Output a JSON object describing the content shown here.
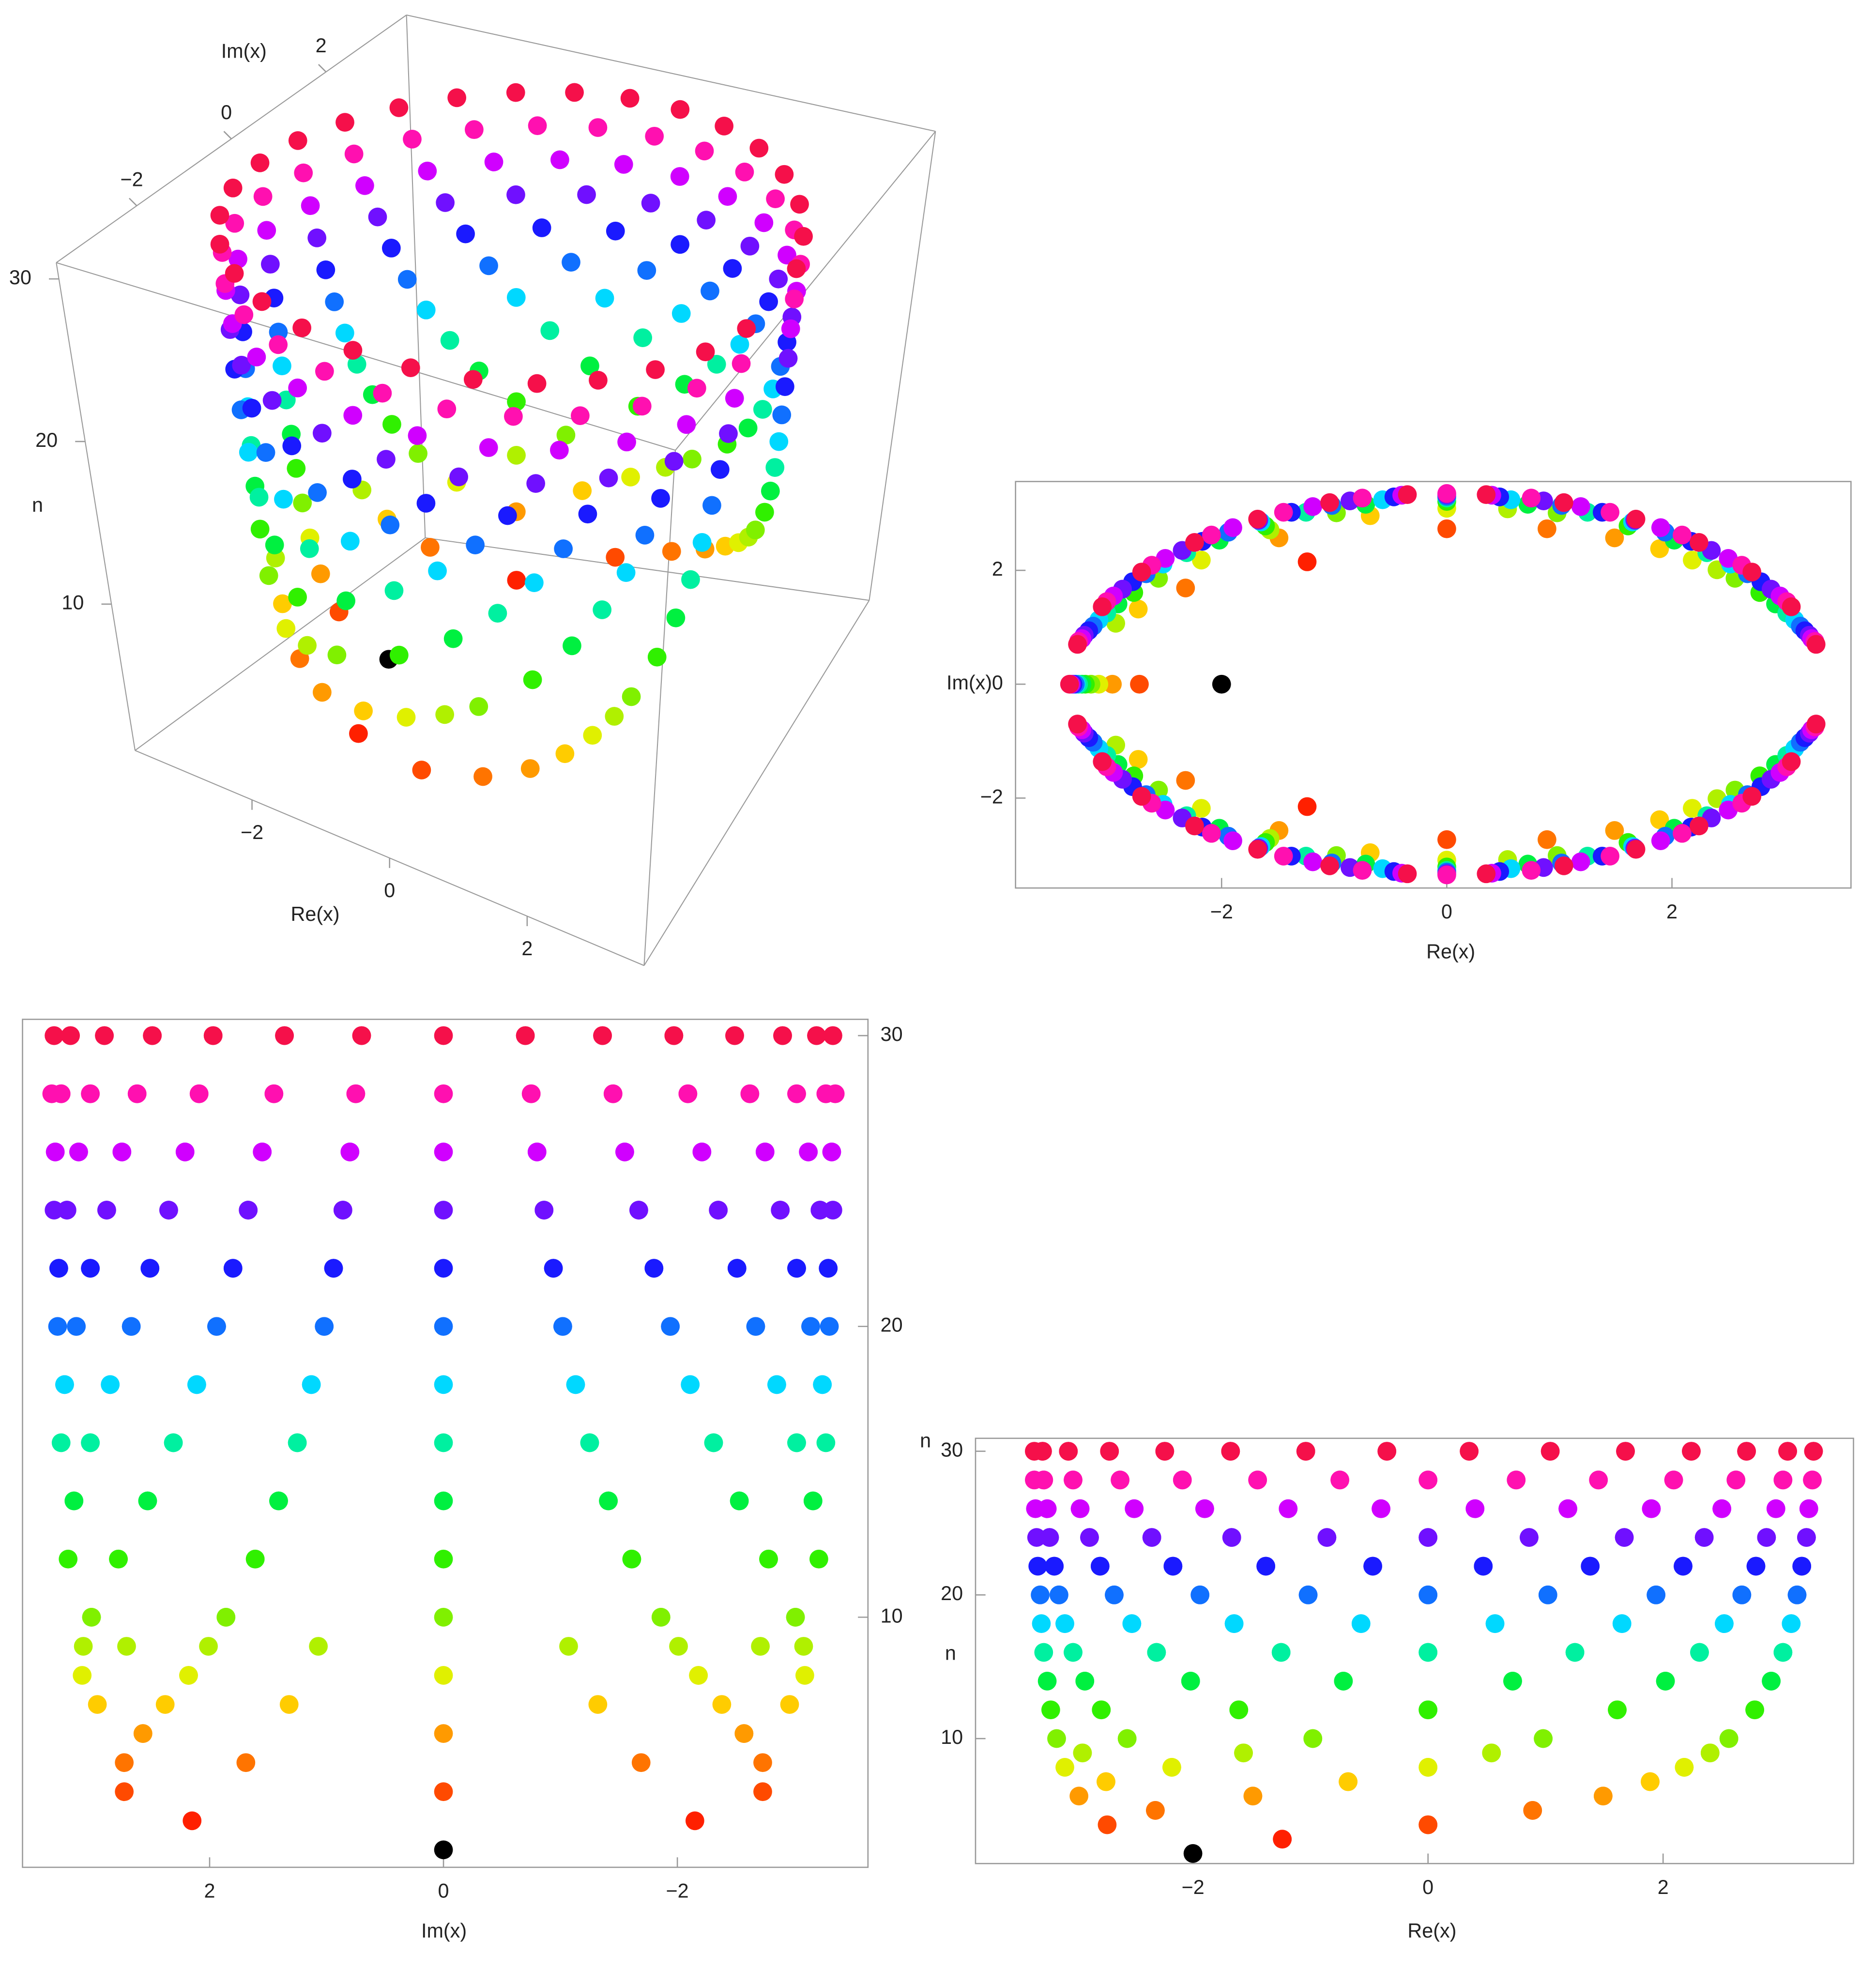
{
  "chart_data": [
    {
      "type": "scatter3d",
      "xlabel": "Re(x)",
      "ylabel": "Im(x)",
      "zlabel": "n",
      "xlim": [
        -3.7,
        3.7
      ],
      "ylim": [
        -3.7,
        3.7
      ],
      "zlim": [
        1,
        31
      ],
      "xticks": [
        {
          "value": -2,
          "label": "−2"
        },
        0,
        2
      ],
      "yticks": [
        {
          "value": -2,
          "label": "−2"
        },
        0,
        2
      ],
      "zticks": [
        10,
        20,
        30
      ],
      "series": [
        {
          "n": 2,
          "color": "#000000",
          "re": [
            -2
          ],
          "im": [
            0
          ]
        },
        {
          "n": 3,
          "color": "#ff2000",
          "re": [
            -1.24,
            -1.24
          ],
          "im": [
            2.15,
            -2.15
          ]
        },
        {
          "n": 4,
          "color": "#ff4a00",
          "re": [
            0,
            -2.73,
            0
          ],
          "im": [
            2.73,
            0,
            -2.73
          ]
        },
        {
          "n": 5,
          "color": "#ff7400",
          "re": [
            0.89,
            -2.32,
            -2.32,
            0.89
          ],
          "im": [
            2.73,
            1.69,
            -1.69,
            -2.73
          ]
        },
        {
          "n": 6,
          "color": "#ff9a00",
          "re": [
            1.49,
            -1.49,
            -2.97,
            -1.49,
            1.49
          ],
          "im": [
            2.57,
            2.57,
            0,
            -2.57,
            -2.57
          ]
        },
        {
          "n": 7,
          "color": "#ffcc00",
          "re": [
            1.89,
            -0.68,
            -2.74,
            -2.74,
            -0.68,
            1.89
          ],
          "im": [
            2.38,
            2.96,
            1.32,
            -1.32,
            -2.96,
            -2.38
          ]
        },
        {
          "n": 8,
          "color": "#e0f000",
          "re": [
            2.18,
            0,
            -2.18,
            -3.09,
            -2.18,
            0,
            2.18
          ],
          "im": [
            2.18,
            3.09,
            2.18,
            0,
            -2.18,
            -3.09,
            -2.18
          ]
        },
        {
          "n": 9,
          "color": "#b0f000",
          "re": [
            2.4,
            0.54,
            -1.57,
            -2.94,
            -2.94,
            -1.57,
            0.54,
            2.4
          ],
          "im": [
            2.01,
            3.08,
            2.71,
            1.07,
            -1.07,
            -2.71,
            -3.08,
            -2.01
          ]
        },
        {
          "n": 10,
          "color": "#80f000",
          "re": [
            2.56,
            0.98,
            -0.98,
            -2.56,
            -3.16,
            -2.56,
            -0.98,
            0.98,
            2.56
          ],
          "im": [
            1.86,
            3.01,
            3.01,
            1.86,
            0,
            -1.86,
            -3.01,
            -3.01,
            -1.86
          ]
        },
        {
          "n": 12,
          "color": "#30f000",
          "re": [
            2.78,
            1.61,
            0,
            -1.61,
            -2.78,
            -3.21,
            -2.78,
            -1.61,
            0,
            1.61,
            2.78
          ],
          "im": [
            1.61,
            2.78,
            3.21,
            2.78,
            1.61,
            0,
            -1.61,
            -2.78,
            -3.21,
            -2.78,
            -1.61
          ]
        },
        {
          "n": 14,
          "color": "#00f040",
          "re": [
            2.92,
            2.02,
            0.72,
            -0.72,
            -2.02,
            -2.92,
            -3.24,
            -2.92,
            -2.02,
            -0.72,
            0.72,
            2.02,
            2.92
          ],
          "im": [
            1.41,
            2.53,
            3.16,
            3.16,
            2.53,
            1.41,
            0,
            -1.41,
            -2.53,
            -3.16,
            -3.16,
            -2.53,
            -1.41
          ]
        },
        {
          "n": 16,
          "color": "#00f0a0",
          "re": [
            3.02,
            2.31,
            1.25,
            0,
            -1.25,
            -2.31,
            -3.02,
            -3.27,
            -3.02,
            -2.31,
            -1.25,
            0,
            1.25,
            2.31,
            3.02
          ],
          "im": [
            1.25,
            2.31,
            3.02,
            3.27,
            3.02,
            2.31,
            1.25,
            0,
            -1.25,
            -2.31,
            -3.02,
            -3.27,
            -3.02,
            -2.31,
            -1.25
          ]
        },
        {
          "n": 18,
          "color": "#00d8ff",
          "re": [
            3.09,
            2.52,
            1.65,
            0.57,
            -0.57,
            -1.65,
            -2.52,
            -3.09,
            -3.29,
            -3.09,
            -2.52,
            -1.65,
            -0.57,
            0.57,
            1.65,
            2.52,
            3.09
          ],
          "im": [
            1.13,
            2.11,
            2.85,
            3.24,
            3.24,
            2.85,
            2.11,
            1.13,
            0,
            -1.13,
            -2.11,
            -2.85,
            -3.24,
            -3.24,
            -2.85,
            -2.11,
            -1.13
          ]
        },
        {
          "n": 20,
          "color": "#1070ff",
          "re": [
            3.14,
            2.67,
            1.94,
            1.02,
            0,
            -1.02,
            -1.94,
            -2.67,
            -3.14,
            -3.3,
            -3.14,
            -2.67,
            -1.94,
            -1.02,
            0,
            1.02,
            1.94,
            2.67,
            3.14
          ],
          "im": [
            1.02,
            1.94,
            2.67,
            3.14,
            3.3,
            3.14,
            2.67,
            1.94,
            1.02,
            0,
            -1.02,
            -1.94,
            -2.67,
            -3.14,
            -3.3,
            -3.14,
            -2.67,
            -1.94,
            -1.02
          ]
        },
        {
          "n": 22,
          "color": "#1a1aff",
          "re": [
            3.18,
            2.79,
            2.17,
            1.38,
            0.47,
            -0.47,
            -1.38,
            -2.17,
            -2.79,
            -3.18,
            -3.32,
            -3.18,
            -2.79,
            -2.17,
            -1.38,
            -0.47,
            0.47,
            1.38,
            2.17,
            2.79,
            3.18
          ],
          "im": [
            0.94,
            1.8,
            2.51,
            3.02,
            3.29,
            3.29,
            3.02,
            2.51,
            1.8,
            0.94,
            0,
            -0.94,
            -1.8,
            -2.51,
            -3.02,
            -3.29,
            -3.29,
            -3.02,
            -2.51,
            -1.8,
            -0.94
          ]
        },
        {
          "n": 24,
          "color": "#7010ff",
          "re": [
            3.22,
            2.88,
            2.35,
            1.67,
            0.86,
            0,
            -0.86,
            -1.67,
            -2.35,
            -2.88,
            -3.22,
            -3.33,
            -3.22,
            -2.88,
            -2.35,
            -1.67,
            -0.86,
            0,
            0.86,
            1.67,
            2.35,
            2.88,
            3.22
          ],
          "im": [
            0.86,
            1.67,
            2.35,
            2.88,
            3.22,
            3.33,
            3.22,
            2.88,
            2.35,
            1.67,
            0.86,
            0,
            -0.86,
            -1.67,
            -2.35,
            -2.88,
            -3.22,
            -3.33,
            -3.22,
            -2.88,
            -2.35,
            -1.67,
            -0.86
          ]
        },
        {
          "n": 26,
          "color": "#d000ff",
          "re": [
            3.24,
            2.96,
            2.5,
            1.9,
            1.19,
            0.4,
            -0.4,
            -1.19,
            -1.9,
            -2.5,
            -2.96,
            -3.24,
            -3.34,
            -3.24,
            -2.96,
            -2.5,
            -1.9,
            -1.19,
            -0.4,
            0.4,
            1.19,
            1.9,
            2.5,
            2.96,
            3.24
          ],
          "im": [
            0.8,
            1.55,
            2.21,
            2.75,
            3.12,
            3.32,
            3.32,
            3.12,
            2.75,
            2.21,
            1.55,
            0.8,
            0,
            -0.8,
            -1.55,
            -2.21,
            -2.75,
            -3.12,
            -3.32,
            -3.32,
            -3.12,
            -2.75,
            -2.21,
            -1.55,
            -0.8
          ]
        },
        {
          "n": 28,
          "color": "#ff10b0",
          "re": [
            3.27,
            3.02,
            2.62,
            2.09,
            1.45,
            0.75,
            0,
            -0.75,
            -1.45,
            -2.09,
            -2.62,
            -3.02,
            -3.27,
            -3.35,
            -3.27,
            -3.02,
            -2.62,
            -2.09,
            -1.45,
            -0.75,
            0,
            0.75,
            1.45,
            2.09,
            2.62,
            3.02,
            3.27
          ],
          "im": [
            0.75,
            1.45,
            2.09,
            2.62,
            3.02,
            3.27,
            3.35,
            3.27,
            3.02,
            2.62,
            2.09,
            1.45,
            0.75,
            0,
            -0.75,
            -1.45,
            -2.09,
            -2.62,
            -3.02,
            -3.27,
            -3.35,
            -3.27,
            -3.02,
            -2.62,
            -2.09,
            -1.45,
            -0.75
          ]
        },
        {
          "n": 30,
          "color": "#f5104a",
          "re": [
            3.28,
            3.06,
            2.71,
            2.24,
            1.68,
            1.04,
            0.35,
            -0.35,
            -1.04,
            -1.68,
            -2.24,
            -2.71,
            -3.06,
            -3.28,
            -3.35,
            -3.28,
            -3.06,
            -2.71,
            -2.24,
            -1.68,
            -1.04,
            -0.35,
            0.35,
            1.04,
            1.68,
            2.24,
            2.71,
            3.06,
            3.28
          ],
          "im": [
            0.7,
            1.36,
            1.97,
            2.49,
            2.9,
            3.19,
            3.33,
            3.33,
            3.19,
            2.9,
            2.49,
            1.97,
            1.36,
            0.7,
            0,
            -0.7,
            -1.36,
            -1.97,
            -2.49,
            -2.9,
            -3.19,
            -3.33,
            -3.33,
            -3.19,
            -2.9,
            -2.49,
            -1.97,
            -1.36,
            -0.7
          ]
        }
      ]
    },
    {
      "type": "scatter",
      "xvar": "re",
      "yvar": "im",
      "xlabel": "Re(x)",
      "ylabel": "Im(x)",
      "xlim": [
        -3.83,
        3.59
      ],
      "ylim": [
        -3.58,
        3.56
      ],
      "xticks": [
        {
          "value": -2,
          "label": "−2"
        },
        0,
        2
      ],
      "yticks": [
        {
          "value": -2,
          "label": "−2"
        },
        0,
        2
      ]
    },
    {
      "type": "scatter",
      "xvar": "im",
      "yvar": "n",
      "xlabel": "Im(x)",
      "ylabel": "n",
      "xlim": [
        3.6,
        -3.63
      ],
      "ylim": [
        1.4,
        30.56
      ],
      "xticks": [
        2,
        0,
        {
          "value": -2,
          "label": "−2"
        }
      ],
      "yticks": [
        10,
        20,
        30
      ]
    },
    {
      "type": "scatter",
      "xvar": "re",
      "yvar": "n",
      "xlabel": "Re(x)",
      "ylabel": "n",
      "xlim": [
        -3.85,
        3.62
      ],
      "ylim": [
        1.3,
        30.9
      ],
      "xticks": [
        {
          "value": -2,
          "label": "−2"
        },
        0,
        2
      ],
      "yticks": [
        10,
        20,
        30
      ]
    }
  ]
}
